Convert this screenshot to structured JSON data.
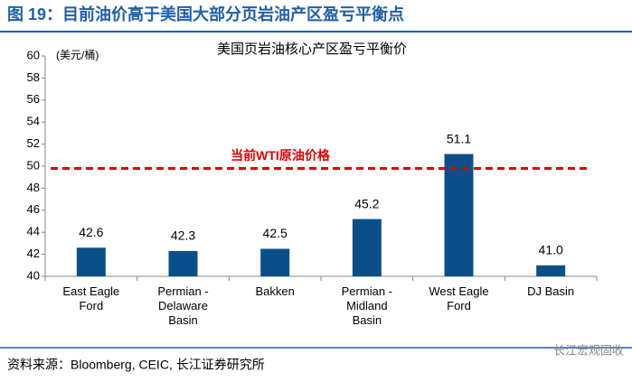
{
  "header": {
    "title": "图 19：目前油价高于美国大部分页岩油产区盈亏平衡点"
  },
  "chart_data": {
    "type": "bar",
    "title": "美国页岩油核心产区盈亏平衡价",
    "y_label": "(美元/桶)",
    "categories": [
      "East Eagle\nFord",
      "Permian -\nDelaware\nBasin",
      "Bakken",
      "Permian -\nMidland\nBasin",
      "West Eagle\nFord",
      "DJ Basin"
    ],
    "values": [
      42.6,
      42.3,
      42.5,
      45.2,
      51.1,
      41.0
    ],
    "value_labels": [
      "42.6",
      "42.3",
      "42.5",
      "45.2",
      "51.1",
      "41.0"
    ],
    "color": "#0b4f8a",
    "ylim": [
      40,
      60
    ],
    "yticks": [
      40,
      42,
      44,
      46,
      48,
      50,
      52,
      54,
      56,
      58,
      60
    ],
    "reference_line": {
      "value": 49.8,
      "label": "当前WTI原油价格",
      "color": "#e00000"
    }
  },
  "footer": {
    "source": "资料来源：Bloomberg, CEIC, 长江证券研究所",
    "watermark": "长江宏观固收"
  }
}
